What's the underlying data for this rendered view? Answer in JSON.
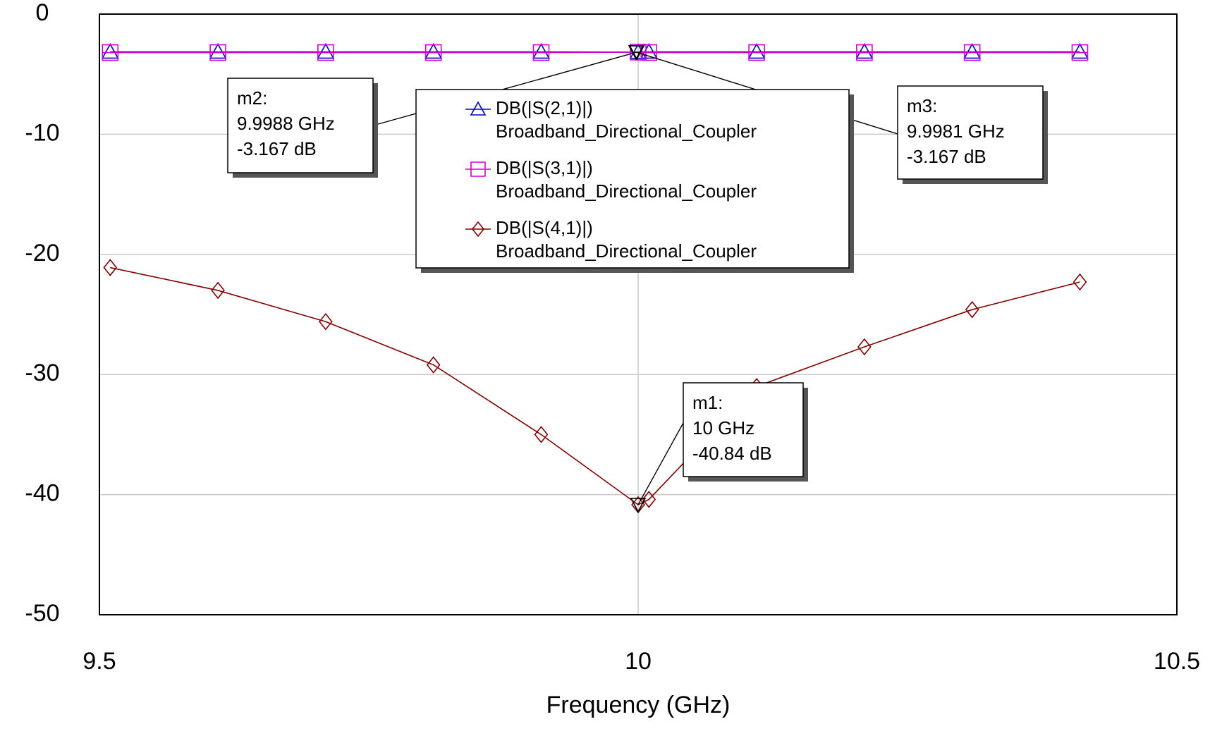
{
  "chart_data": {
    "type": "line",
    "x": [
      9.51,
      9.61,
      9.71,
      9.81,
      9.91,
      10.0,
      10.01,
      10.11,
      10.21,
      10.31,
      10.41
    ],
    "series": [
      {
        "name": "DB(|S(2,1)|)",
        "source": "Broadband_Directional_Coupler",
        "color": "#0000c8",
        "marker": "triangle",
        "values": [
          -3.15,
          -3.15,
          -3.15,
          -3.15,
          -3.15,
          -3.167,
          -3.15,
          -3.15,
          -3.15,
          -3.15,
          -3.15
        ]
      },
      {
        "name": "DB(|S(3,1)|)",
        "source": "Broadband_Directional_Coupler",
        "color": "#d000d0",
        "marker": "square",
        "values": [
          -3.2,
          -3.2,
          -3.2,
          -3.2,
          -3.2,
          -3.167,
          -3.2,
          -3.2,
          -3.2,
          -3.2,
          -3.2
        ]
      },
      {
        "name": "DB(|S(4,1)|)",
        "source": "Broadband_Directional_Coupler",
        "color": "#800000",
        "marker": "diamond",
        "values": [
          -21.1,
          -23.0,
          -25.6,
          -29.2,
          -35.0,
          -40.84,
          -40.4,
          -31.0,
          -27.7,
          -24.6,
          -22.3
        ]
      }
    ],
    "xlim": [
      9.5,
      10.5
    ],
    "xticks": [
      9.5,
      10,
      10.5
    ],
    "ylim": [
      -50,
      0
    ],
    "yticks": [
      -50,
      -40,
      -30,
      -20,
      -10,
      0
    ],
    "xlabel": "Frequency (GHz)",
    "grid": true,
    "markers": [
      {
        "name": "m1:",
        "x": 10,
        "x_label": "10 GHz",
        "y": -40.84,
        "y_label": "-40.84 dB"
      },
      {
        "name": "m2:",
        "x": 9.9988,
        "x_label": "9.9988 GHz",
        "y": -3.167,
        "y_label": "-3.167 dB"
      },
      {
        "name": "m3:",
        "x": 9.9981,
        "x_label": "9.9981 GHz",
        "y": -3.167,
        "y_label": "-3.167 dB"
      }
    ]
  }
}
